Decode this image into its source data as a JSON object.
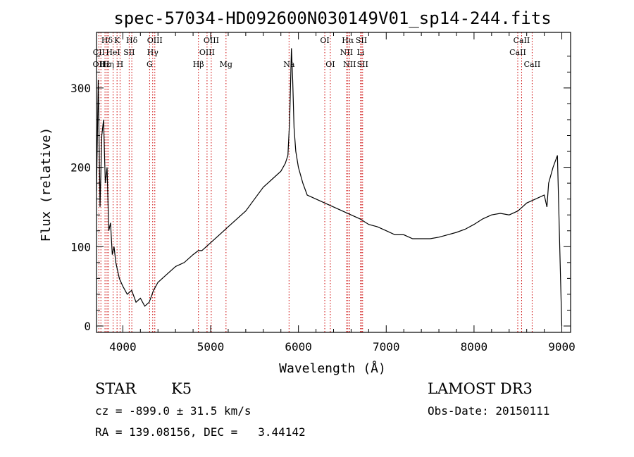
{
  "chart_data": {
    "type": "line",
    "title": "spec-57034-HD092600N030149V01_sp14-244.fits",
    "xlabel": "Wavelength (Å)",
    "ylabel": "Flux (relative)",
    "xlim": [
      3700,
      9100
    ],
    "ylim": [
      -8,
      370
    ],
    "xticks": [
      4000,
      5000,
      6000,
      7000,
      8000,
      9000
    ],
    "yticks": [
      0,
      100,
      200,
      300
    ],
    "grid": false,
    "series": [
      {
        "x": [
          3700,
          3720,
          3740,
          3760,
          3780,
          3800,
          3820,
          3840,
          3860,
          3880,
          3900,
          3920,
          3940,
          3960,
          3980,
          4000,
          4050,
          4100,
          4150,
          4200,
          4250,
          4300,
          4350,
          4400,
          4500,
          4600,
          4700,
          4800,
          4860,
          4900,
          5000,
          5100,
          5200,
          5300,
          5400,
          5500,
          5600,
          5700,
          5800,
          5850,
          5880,
          5900,
          5920,
          5935,
          5950,
          5970,
          6000,
          6050,
          6100,
          6200,
          6300,
          6400,
          6500,
          6600,
          6700,
          6800,
          6900,
          7000,
          7100,
          7200,
          7300,
          7400,
          7500,
          7600,
          7700,
          7800,
          7900,
          8000,
          8100,
          8200,
          8300,
          8400,
          8500,
          8550,
          8600,
          8700,
          8800,
          8830,
          8850,
          8900,
          8950,
          8990,
          9000
        ],
        "y": [
          170,
          310,
          150,
          240,
          260,
          180,
          200,
          120,
          130,
          90,
          100,
          80,
          70,
          60,
          55,
          50,
          40,
          45,
          30,
          35,
          25,
          30,
          45,
          55,
          65,
          75,
          80,
          90,
          95,
          95,
          105,
          115,
          125,
          135,
          145,
          160,
          175,
          185,
          195,
          205,
          215,
          260,
          350,
          310,
          250,
          220,
          200,
          180,
          165,
          160,
          155,
          150,
          145,
          140,
          135,
          128,
          125,
          120,
          115,
          115,
          110,
          110,
          110,
          112,
          115,
          118,
          122,
          128,
          135,
          140,
          142,
          140,
          145,
          150,
          155,
          160,
          165,
          150,
          180,
          200,
          215,
          40,
          0
        ]
      }
    ],
    "annotations": [
      {
        "label": "Hδ",
        "x": 3820,
        "row": 1
      },
      {
        "label": "K",
        "x": 3934,
        "row": 1
      },
      {
        "label": "Hδ",
        "x": 4102,
        "row": 1
      },
      {
        "label": "OIII",
        "x": 4364,
        "row": 1
      },
      {
        "label": "OIII",
        "x": 5007,
        "row": 1
      },
      {
        "label": "OI",
        "x": 6300,
        "row": 1
      },
      {
        "label": "Hα",
        "x": 6563,
        "row": 1
      },
      {
        "label": "SII",
        "x": 6717,
        "row": 1
      },
      {
        "label": "CaII",
        "x": 8542,
        "row": 1
      },
      {
        "label": "CII",
        "x": 3727,
        "row": 2
      },
      {
        "label": "HeI",
        "x": 3889,
        "row": 2
      },
      {
        "label": "SII",
        "x": 4072,
        "row": 2
      },
      {
        "label": "Hγ",
        "x": 4340,
        "row": 2
      },
      {
        "label": "OIII",
        "x": 4959,
        "row": 2
      },
      {
        "label": "NII",
        "x": 6548,
        "row": 2
      },
      {
        "label": "Li",
        "x": 6708,
        "row": 2
      },
      {
        "label": "CaII",
        "x": 8498,
        "row": 2
      },
      {
        "label": "OII",
        "x": 3727,
        "row": 3
      },
      {
        "label": "Hε",
        "x": 3797,
        "row": 3
      },
      {
        "label": "Hη",
        "x": 3835,
        "row": 3
      },
      {
        "label": "H",
        "x": 3968,
        "row": 3
      },
      {
        "label": "G",
        "x": 4305,
        "row": 3
      },
      {
        "label": "Hβ",
        "x": 4861,
        "row": 3
      },
      {
        "label": "Mg",
        "x": 5175,
        "row": 3
      },
      {
        "label": "Na",
        "x": 5893,
        "row": 3
      },
      {
        "label": "OI",
        "x": 6363,
        "row": 3
      },
      {
        "label": "NII",
        "x": 6583,
        "row": 3
      },
      {
        "label": "SII",
        "x": 6731,
        "row": 3
      },
      {
        "label": "CaII",
        "x": 8662,
        "row": 3
      }
    ],
    "line_markers": [
      3727,
      3750,
      3797,
      3820,
      3835,
      3889,
      3934,
      3968,
      4072,
      4102,
      4305,
      4340,
      4364,
      4861,
      4959,
      5007,
      5175,
      5893,
      6300,
      6363,
      6548,
      6563,
      6583,
      6708,
      6717,
      6731,
      8498,
      8542,
      8662
    ],
    "colors": {
      "spectrum": "#000000",
      "markers": "#cc0000",
      "axes": "#000000"
    }
  },
  "info": {
    "class_label": "STAR",
    "subclass": "K5",
    "survey": "LAMOST DR3",
    "cz": "cz = -899.0 ± 31.5 km/s",
    "obs_date": "Obs-Date: 20150111",
    "coords": "RA = 139.08156, DEC =   3.44142"
  }
}
